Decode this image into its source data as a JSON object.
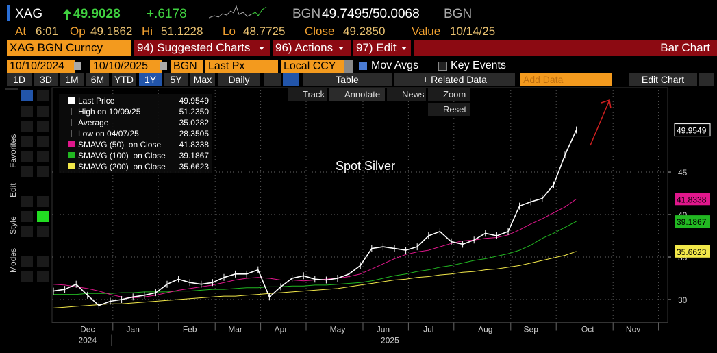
{
  "header": {
    "ticker": "XAG",
    "last": "49.9028",
    "change": "+.6178",
    "bid_src": "BGN",
    "quote_pair": "49.7495/50.0068",
    "ask_src": "BGN",
    "quote": [
      {
        "label": "At",
        "value": "6:01"
      },
      {
        "label": "Op",
        "value": "49.1862"
      },
      {
        "label": "Hi",
        "value": "51.1228"
      },
      {
        "label": "Lo",
        "value": "48.7725"
      },
      {
        "label": "Close",
        "value": "49.2850"
      },
      {
        "label": "Value",
        "value": "10/14/25"
      }
    ]
  },
  "menu": {
    "security": "XAG BGN Curncy",
    "items": [
      "94) Suggested Charts",
      "96) Actions",
      "97) Edit"
    ],
    "chart_kind": "Bar Chart"
  },
  "settings": {
    "start": "10/10/2024",
    "end": "10/10/2025",
    "source": "BGN",
    "field": "Last Px",
    "currency": "Local CCY",
    "mov_avgs": "Mov Avgs",
    "key_events": "Key Events"
  },
  "toolbar": {
    "ranges": [
      "1D",
      "3D",
      "1M",
      "6M",
      "YTD",
      "1Y",
      "5Y",
      "Max"
    ],
    "period": "Daily",
    "table": "Table",
    "related": "+ Related Data",
    "add_data": "Add Data",
    "edit_chart": "Edit Chart"
  },
  "chart_tools": [
    "Track",
    "Annotate",
    "News",
    "Zoom",
    "Reset"
  ],
  "side_tabs": [
    "Favorites",
    "Edit",
    "Style",
    "Modes"
  ],
  "chart_data": {
    "type": "line",
    "annotation": "Spot Silver",
    "categories": [
      null,
      null,
      null,
      "Dec",
      null,
      null,
      null,
      "Jan",
      null,
      null,
      null,
      null,
      "Feb",
      null,
      null,
      null,
      "Mar",
      null,
      null,
      null,
      "Apr",
      null,
      null,
      null,
      null,
      "May",
      null,
      null,
      null,
      "Jun",
      null,
      null,
      null,
      "Jul",
      null,
      null,
      null,
      null,
      "Aug",
      null,
      null,
      null,
      "Sep",
      null,
      null,
      null,
      null,
      "Oct",
      null,
      null,
      null,
      "Nov",
      null,
      null,
      null
    ],
    "years": [
      "2024",
      "2025"
    ],
    "series": [
      {
        "name": "Last Price",
        "color": "#ffffff",
        "values": [
          31.0,
          31.2,
          31.8,
          30.5,
          29.3,
          29.8,
          30.0,
          30.3,
          30.5,
          30.8,
          31.8,
          32.4,
          32.0,
          31.8,
          32.0,
          32.6,
          33.0,
          33.0,
          33.5,
          30.3,
          31.5,
          32.5,
          32.8,
          32.4,
          32.3,
          32.5,
          33.0,
          34.0,
          36.0,
          36.2,
          36.0,
          35.8,
          36.2,
          37.5,
          38.0,
          36.8,
          36.5,
          37.0,
          37.8,
          37.5,
          38.0,
          41.0,
          41.5,
          41.9,
          43.5,
          47.0,
          49.9549,
          null,
          null,
          null,
          null,
          null,
          null,
          null,
          null
        ]
      },
      {
        "name": "SMAVG (50)  on Close",
        "color": "#e0178c",
        "values": [
          31.8,
          31.7,
          31.5,
          31.3,
          31.0,
          30.6,
          30.3,
          30.2,
          30.3,
          30.5,
          30.8,
          31.1,
          31.3,
          31.5,
          31.7,
          32.0,
          32.3,
          32.5,
          32.6,
          32.5,
          32.3,
          32.3,
          32.2,
          32.3,
          32.4,
          32.5,
          32.7,
          33.0,
          33.6,
          34.2,
          34.8,
          35.3,
          35.6,
          35.8,
          36.2,
          36.6,
          36.9,
          37.0,
          37.2,
          37.3,
          37.6,
          38.2,
          38.9,
          39.5,
          40.2,
          40.9,
          41.8338,
          null,
          null,
          null,
          null,
          null,
          null,
          null,
          null
        ]
      },
      {
        "name": "SMAVG (100)  on Close",
        "color": "#22b822",
        "values": [
          30.6,
          30.6,
          30.6,
          30.7,
          30.7,
          30.7,
          30.8,
          30.8,
          30.9,
          30.9,
          30.9,
          31.0,
          31.0,
          31.1,
          31.2,
          31.2,
          31.3,
          31.4,
          31.4,
          31.5,
          31.5,
          31.6,
          31.6,
          31.7,
          31.7,
          31.8,
          31.9,
          32.0,
          32.2,
          32.5,
          32.8,
          33.0,
          33.3,
          33.5,
          33.8,
          34.0,
          34.3,
          34.6,
          34.8,
          35.1,
          35.4,
          35.8,
          36.4,
          37.2,
          37.8,
          38.5,
          39.1867,
          null,
          null,
          null,
          null,
          null,
          null,
          null,
          null
        ]
      },
      {
        "name": "SMAVG (200)  on Close",
        "color": "#f2e84a",
        "values": [
          29.0,
          29.1,
          29.2,
          29.3,
          29.4,
          29.5,
          29.5,
          29.6,
          29.7,
          29.8,
          29.9,
          30.0,
          30.1,
          30.2,
          30.3,
          30.4,
          30.4,
          30.5,
          30.6,
          30.7,
          30.8,
          30.9,
          31.0,
          31.1,
          31.2,
          31.3,
          31.5,
          31.7,
          31.9,
          32.1,
          32.3,
          32.4,
          32.6,
          32.7,
          32.9,
          33.0,
          33.2,
          33.3,
          33.5,
          33.6,
          33.8,
          34.0,
          34.3,
          34.6,
          34.9,
          35.2,
          35.6623,
          null,
          null,
          null,
          null,
          null,
          null,
          null,
          null
        ]
      }
    ],
    "stats": [
      {
        "label": "High on 10/09/25",
        "value": "51.2350"
      },
      {
        "label": "Average",
        "value": "35.0282"
      },
      {
        "label": "Low on 04/07/25",
        "value": "28.3505"
      }
    ],
    "ylim": [
      27.3,
      53.1
    ],
    "yticks": [
      30,
      35,
      40,
      45
    ],
    "grid": true
  }
}
